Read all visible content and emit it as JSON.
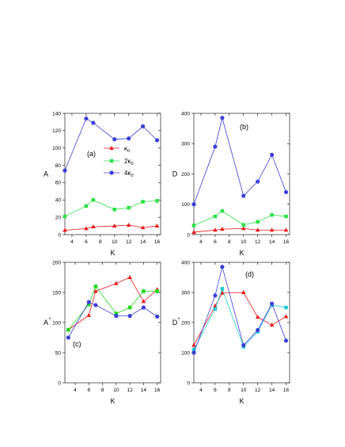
{
  "colors": {
    "red": "#e8181b",
    "green": "#2fe04c",
    "blue": "#3b3fd6",
    "cyan": "#25c7cf",
    "brightgreen": "#21d81d"
  },
  "legend": {
    "labels": [
      "κ",
      "2κ",
      "4κ"
    ],
    "subscript": "0"
  },
  "chart_data": [
    {
      "type": "line",
      "panel": "(a)",
      "xlabel": "K",
      "ylabel": "A",
      "yprime": false,
      "xlim": [
        3,
        16.5
      ],
      "ylim": [
        0,
        140
      ],
      "xticks": [
        4,
        6,
        8,
        10,
        12,
        14,
        16
      ],
      "yticks": [
        0,
        20,
        40,
        60,
        80,
        100,
        120,
        140
      ],
      "x": [
        3,
        6,
        7,
        10,
        12,
        14,
        16
      ],
      "series": [
        {
          "name": "κ0",
          "color": "red",
          "marker": "triangle",
          "values": [
            5,
            7,
            9,
            10,
            11,
            8,
            10
          ]
        },
        {
          "name": "2κ0",
          "color": "green",
          "marker": "square",
          "values": [
            21,
            33,
            40,
            29,
            31,
            38,
            39
          ]
        },
        {
          "name": "4κ0",
          "color": "blue",
          "marker": "circle",
          "values": [
            74,
            134,
            129,
            110,
            111,
            125,
            109
          ]
        }
      ]
    },
    {
      "type": "line",
      "panel": "(b)",
      "xlabel": "K",
      "ylabel": "D",
      "yprime": false,
      "xlim": [
        3,
        16.5
      ],
      "ylim": [
        0,
        400
      ],
      "xticks": [
        4,
        6,
        8,
        10,
        12,
        14,
        16
      ],
      "yticks": [
        0,
        100,
        200,
        300,
        400
      ],
      "x": [
        3,
        6,
        7,
        10,
        12,
        14,
        16
      ],
      "series": [
        {
          "name": "κ0",
          "color": "red",
          "marker": "triangle",
          "values": [
            8,
            15,
            18,
            20,
            15,
            15,
            15
          ]
        },
        {
          "name": "2κ0",
          "color": "green",
          "marker": "square",
          "values": [
            30,
            60,
            78,
            32,
            42,
            65,
            60
          ]
        },
        {
          "name": "4κ0",
          "color": "blue",
          "marker": "circle",
          "values": [
            100,
            290,
            385,
            128,
            175,
            263,
            140
          ]
        }
      ]
    },
    {
      "type": "line",
      "panel": "(c)",
      "xlabel": "K",
      "ylabel": "A",
      "yprime": true,
      "xlim": [
        2.5,
        16.5
      ],
      "ylim": [
        0,
        200
      ],
      "xticks": [
        4,
        6,
        8,
        10,
        12,
        14,
        16
      ],
      "yticks": [
        0,
        50,
        100,
        150,
        200
      ],
      "x": [
        3,
        6,
        7,
        10,
        12,
        14,
        16
      ],
      "series": [
        {
          "name": "",
          "color": "red",
          "marker": "triangle",
          "values": [
            88,
            112,
            152,
            165,
            175,
            135,
            155
          ]
        },
        {
          "name": "",
          "color": "brightgreen",
          "marker": "square",
          "values": [
            88,
            130,
            160,
            115,
            125,
            152,
            152
          ]
        },
        {
          "name": "",
          "color": "blue",
          "marker": "circle",
          "values": [
            75,
            134,
            129,
            111,
            111,
            125,
            110
          ]
        }
      ]
    },
    {
      "type": "line",
      "panel": "(d)",
      "xlabel": "K",
      "ylabel": "D",
      "yprime": true,
      "xlim": [
        3,
        16.5
      ],
      "ylim": [
        0,
        400
      ],
      "xticks": [
        4,
        6,
        8,
        10,
        12,
        14,
        16
      ],
      "yticks": [
        0,
        100,
        200,
        300,
        400
      ],
      "x": [
        3,
        6,
        7,
        10,
        12,
        14,
        16
      ],
      "series": [
        {
          "name": "",
          "color": "red",
          "marker": "triangle",
          "values": [
            125,
            255,
            298,
            300,
            218,
            192,
            220
          ]
        },
        {
          "name": "",
          "color": "cyan",
          "marker": "square",
          "values": [
            110,
            245,
            312,
            120,
            170,
            258,
            250
          ]
        },
        {
          "name": "",
          "color": "blue",
          "marker": "circle",
          "values": [
            100,
            290,
            385,
            125,
            175,
            263,
            140
          ]
        }
      ]
    }
  ]
}
